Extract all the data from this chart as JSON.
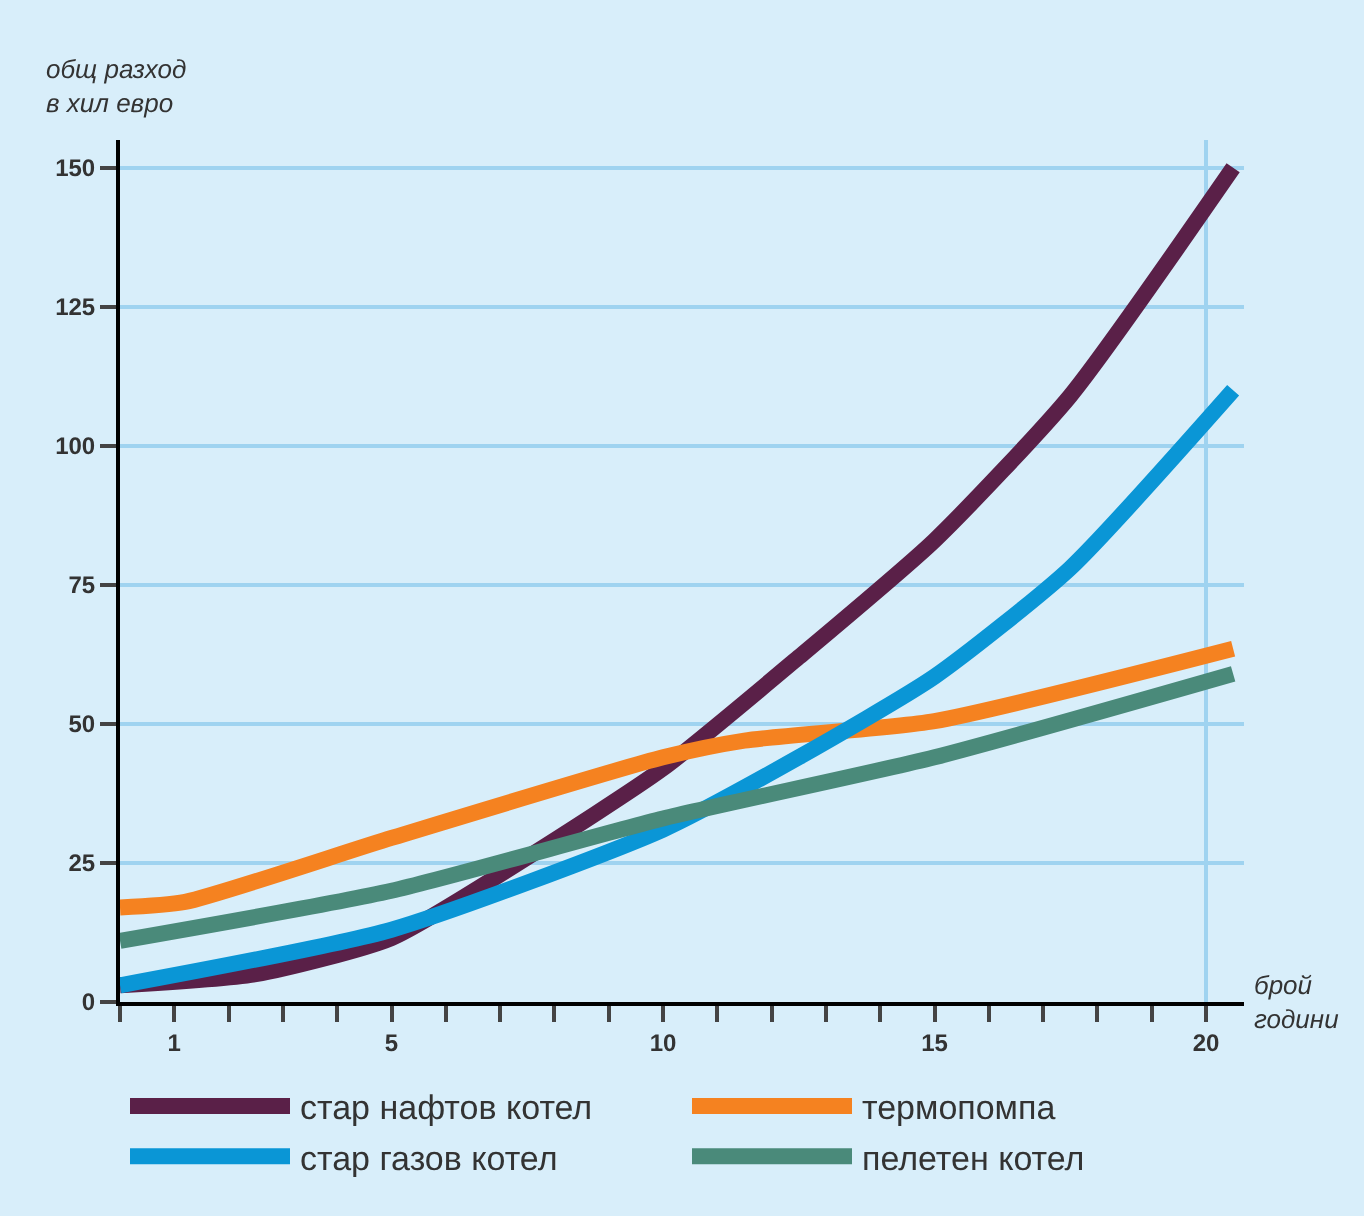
{
  "chart_data": {
    "type": "line",
    "xlabel": "брой\nгодини",
    "ylabel": "общ разход\nв хил евро",
    "xlim": [
      0,
      20.7
    ],
    "ylim": [
      0,
      155
    ],
    "xticks": [
      {
        "value": 0,
        "label": null
      },
      1,
      {
        "value": 2,
        "label": null
      },
      {
        "value": 3,
        "label": null
      },
      {
        "value": 4,
        "label": null
      },
      5,
      {
        "value": 6,
        "label": null
      },
      {
        "value": 7,
        "label": null
      },
      {
        "value": 8,
        "label": null
      },
      {
        "value": 9,
        "label": null
      },
      10,
      {
        "value": 11,
        "label": null
      },
      {
        "value": 12,
        "label": null
      },
      {
        "value": 13,
        "label": null
      },
      {
        "value": 14,
        "label": null
      },
      15,
      {
        "value": 16,
        "label": null
      },
      {
        "value": 17,
        "label": null
      },
      {
        "value": 18,
        "label": null
      },
      {
        "value": 19,
        "label": null
      },
      20
    ],
    "yticks": [
      0,
      25,
      50,
      75,
      100,
      125,
      150
    ],
    "grid": "y",
    "legend": "bottom",
    "marker": "none",
    "line_style": "solid",
    "ref_lines": [
      {
        "axis": "x",
        "value": 20,
        "color": "#9fd3f0"
      }
    ],
    "series": [
      {
        "name": "стар нафтов котел",
        "color": "#5a2048",
        "x": [
          0,
          2.5,
          5,
          7.5,
          10,
          12.5,
          15,
          17.5,
          20.5
        ],
        "values": [
          3,
          5,
          11.5,
          26,
          42,
          62,
          83,
          109,
          150
        ]
      },
      {
        "name": "термопомпа",
        "color": "#f58220",
        "x": [
          0,
          1.2,
          5,
          10,
          11.5,
          15,
          20.5
        ],
        "values": [
          17,
          18,
          29.5,
          44,
          47,
          50.5,
          63.5
        ]
      },
      {
        "name": "стар газов котел",
        "color": "#0a96d6",
        "x": [
          0,
          5,
          10,
          12.5,
          15,
          17.5,
          20.5
        ],
        "values": [
          3,
          13,
          31,
          44,
          58.5,
          78,
          110
        ]
      },
      {
        "name": "пелетен котел",
        "color": "#4a8a7a",
        "x": [
          0,
          5,
          10,
          15,
          20.5
        ],
        "values": [
          11,
          20,
          33,
          44,
          59
        ]
      }
    ]
  }
}
